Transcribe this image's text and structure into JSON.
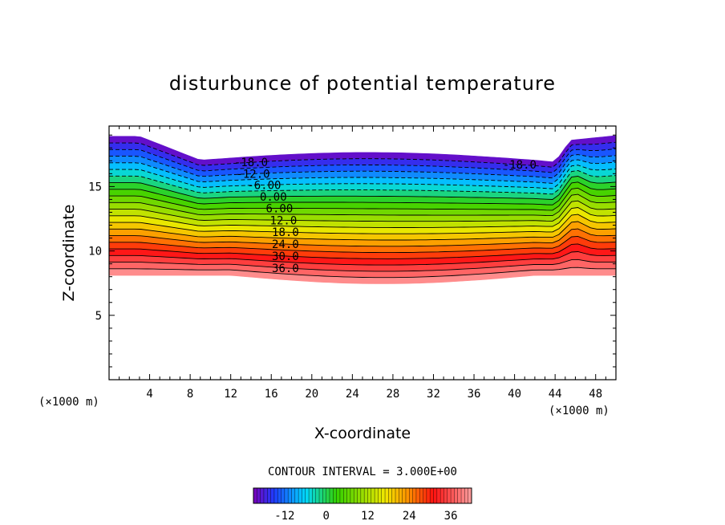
{
  "chart_data": {
    "type": "heatmap",
    "title": "disturbunce of potential temperature",
    "xlabel": "X-coordinate",
    "ylabel": "Z-coordinate",
    "x_unit": "(×1000 m)",
    "z_unit": "(×1000 m)",
    "xlim": [
      0,
      50
    ],
    "ylim": [
      0,
      19.7
    ],
    "xticks": [
      4,
      8,
      12,
      16,
      20,
      24,
      28,
      32,
      36,
      40,
      44,
      48
    ],
    "yticks": [
      5,
      10,
      15
    ],
    "contour_interval_text": "CONTOUR INTERVAL = 3.000E+00",
    "colorbar_ticks": [
      -12,
      0,
      12,
      24,
      36
    ],
    "colorbar_range": [
      -21,
      42
    ],
    "contour_labels": [
      "-18.0",
      "-18.0",
      "-12.0",
      "-6.00",
      "0.00",
      "6.00",
      "12.0",
      "18.0",
      "24.0",
      "30.0",
      "36.0"
    ],
    "colors": {
      "purple": "#7a00b8",
      "blue": "#1e3cff",
      "cyan": "#00d8ff",
      "green": "#33d100",
      "yellow": "#f0e800",
      "orange": "#ff8c00",
      "red": "#ff1010",
      "pink": "#ffa0a0"
    }
  }
}
